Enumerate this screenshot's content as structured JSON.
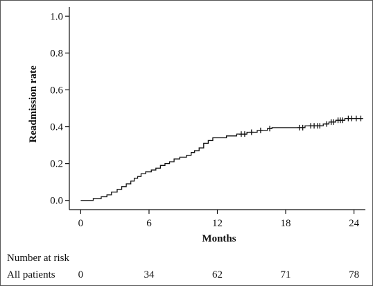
{
  "chart_data": {
    "type": "line",
    "title": "",
    "xlabel": "Months",
    "ylabel": "Readmission rate",
    "xlim": [
      -1,
      25
    ],
    "ylim": [
      -0.05,
      1.05
    ],
    "x_ticks": [
      0,
      6,
      12,
      18,
      24
    ],
    "x_tick_labels": [
      "0",
      "6",
      "12",
      "18",
      "24"
    ],
    "y_ticks": [
      0.0,
      0.2,
      0.4,
      0.6,
      0.8,
      1.0
    ],
    "y_tick_labels": [
      "0.0",
      "0.2",
      "0.4",
      "0.6",
      "0.8",
      "1.0"
    ],
    "grid": false,
    "series": [
      {
        "step_curve": [
          [
            0,
            0.0
          ],
          [
            1.1,
            0.0
          ],
          [
            1.1,
            0.01
          ],
          [
            1.8,
            0.01
          ],
          [
            1.8,
            0.02
          ],
          [
            2.3,
            0.02
          ],
          [
            2.3,
            0.03
          ],
          [
            2.7,
            0.03
          ],
          [
            2.7,
            0.045
          ],
          [
            3.2,
            0.045
          ],
          [
            3.2,
            0.06
          ],
          [
            3.6,
            0.06
          ],
          [
            3.6,
            0.075
          ],
          [
            4.0,
            0.075
          ],
          [
            4.0,
            0.09
          ],
          [
            4.4,
            0.09
          ],
          [
            4.4,
            0.105
          ],
          [
            4.7,
            0.105
          ],
          [
            4.7,
            0.12
          ],
          [
            5.0,
            0.12
          ],
          [
            5.0,
            0.13
          ],
          [
            5.3,
            0.13
          ],
          [
            5.3,
            0.145
          ],
          [
            5.7,
            0.145
          ],
          [
            5.7,
            0.155
          ],
          [
            6.2,
            0.155
          ],
          [
            6.2,
            0.165
          ],
          [
            6.6,
            0.165
          ],
          [
            6.6,
            0.175
          ],
          [
            7.0,
            0.175
          ],
          [
            7.0,
            0.19
          ],
          [
            7.4,
            0.19
          ],
          [
            7.4,
            0.2
          ],
          [
            7.8,
            0.2
          ],
          [
            7.8,
            0.21
          ],
          [
            8.2,
            0.21
          ],
          [
            8.2,
            0.225
          ],
          [
            8.7,
            0.225
          ],
          [
            8.7,
            0.235
          ],
          [
            9.3,
            0.235
          ],
          [
            9.3,
            0.245
          ],
          [
            9.7,
            0.245
          ],
          [
            9.7,
            0.26
          ],
          [
            10.0,
            0.26
          ],
          [
            10.0,
            0.27
          ],
          [
            10.4,
            0.27
          ],
          [
            10.4,
            0.285
          ],
          [
            10.8,
            0.285
          ],
          [
            10.8,
            0.31
          ],
          [
            11.2,
            0.31
          ],
          [
            11.2,
            0.325
          ],
          [
            11.6,
            0.325
          ],
          [
            11.6,
            0.34
          ],
          [
            12.8,
            0.34
          ],
          [
            12.8,
            0.35
          ],
          [
            13.7,
            0.35
          ],
          [
            13.7,
            0.36
          ],
          [
            14.6,
            0.36
          ],
          [
            14.6,
            0.37
          ],
          [
            15.5,
            0.37
          ],
          [
            15.5,
            0.38
          ],
          [
            16.4,
            0.38
          ],
          [
            16.4,
            0.39
          ],
          [
            16.8,
            0.39
          ],
          [
            16.8,
            0.395
          ],
          [
            19.7,
            0.395
          ],
          [
            19.7,
            0.405
          ],
          [
            21.3,
            0.405
          ],
          [
            21.3,
            0.415
          ],
          [
            21.8,
            0.415
          ],
          [
            21.8,
            0.425
          ],
          [
            22.4,
            0.425
          ],
          [
            22.4,
            0.435
          ],
          [
            23.2,
            0.435
          ],
          [
            23.2,
            0.445
          ],
          [
            24.8,
            0.445
          ]
        ],
        "censored": [
          [
            14.1,
            0.36
          ],
          [
            14.4,
            0.36
          ],
          [
            15.0,
            0.37
          ],
          [
            15.8,
            0.38
          ],
          [
            16.6,
            0.39
          ],
          [
            19.2,
            0.395
          ],
          [
            19.5,
            0.395
          ],
          [
            20.2,
            0.405
          ],
          [
            20.5,
            0.405
          ],
          [
            20.8,
            0.405
          ],
          [
            21.0,
            0.405
          ],
          [
            21.6,
            0.415
          ],
          [
            22.0,
            0.425
          ],
          [
            22.2,
            0.425
          ],
          [
            22.6,
            0.435
          ],
          [
            22.8,
            0.435
          ],
          [
            23.0,
            0.435
          ],
          [
            23.5,
            0.445
          ],
          [
            23.8,
            0.445
          ],
          [
            24.2,
            0.445
          ],
          [
            24.6,
            0.445
          ]
        ]
      }
    ]
  },
  "risk_table": {
    "header": "Number at risk",
    "row_label": "All patients",
    "times": [
      0,
      6,
      12,
      18,
      24
    ],
    "values": [
      "0",
      "34",
      "62",
      "71",
      "78"
    ]
  }
}
